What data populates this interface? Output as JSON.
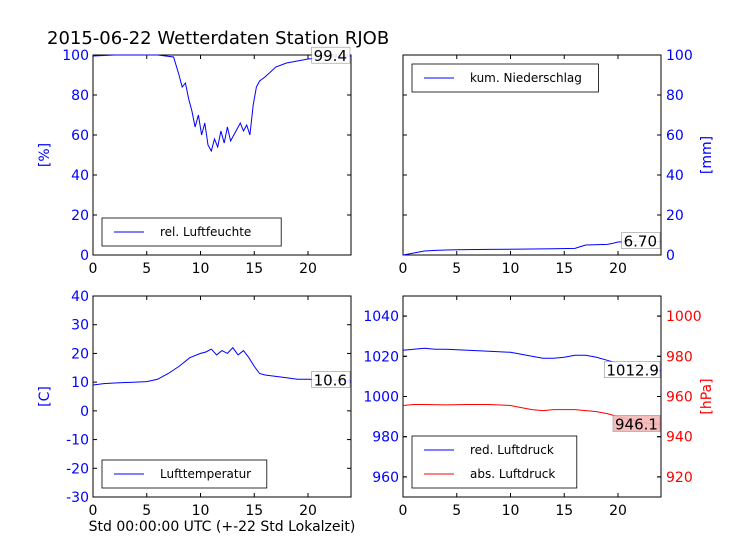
{
  "figure": {
    "title": "2015-06-22 Wetterdaten Station RJOB",
    "xlabel": "Std 00:00:00 UTC (+-22 Std Lokalzeit)"
  },
  "colors": {
    "blue": "#0000ff",
    "red": "#ff0000",
    "label_red_bg": "#f4b8b8"
  },
  "chart_data": [
    {
      "id": "humidity",
      "type": "line",
      "ylabel": "[%]",
      "xlim": [
        0,
        24
      ],
      "ylim": [
        0,
        100
      ],
      "xticks": [
        0,
        5,
        10,
        15,
        20
      ],
      "yticks": [
        0,
        20,
        40,
        60,
        80,
        100
      ],
      "yaxis_side": "left",
      "legend": {
        "placement": "lower-left"
      },
      "end_label": "99.4",
      "series": [
        {
          "name": "rel. Luftfeuchte",
          "color": "#0000ff",
          "x": [
            0,
            2,
            4,
            6,
            7.5,
            8,
            8.3,
            8.6,
            8.9,
            9.2,
            9.5,
            9.8,
            10.1,
            10.4,
            10.7,
            11,
            11.3,
            11.6,
            11.9,
            12.2,
            12.5,
            12.8,
            13.1,
            13.4,
            13.7,
            14,
            14.3,
            14.6,
            14.9,
            15.2,
            15.5,
            16,
            17,
            18,
            19,
            20,
            21,
            22,
            23,
            24
          ],
          "y": [
            99.5,
            100,
            100,
            100,
            99,
            90,
            84,
            86,
            78,
            72,
            64,
            70,
            60,
            66,
            55,
            52,
            58,
            54,
            62,
            56,
            64,
            57,
            60,
            63,
            66,
            62,
            65,
            60,
            75,
            84,
            87,
            89,
            94,
            96,
            97,
            98,
            98.5,
            99,
            99.3,
            99.4
          ]
        }
      ]
    },
    {
      "id": "precip",
      "type": "line",
      "ylabel": "[mm]",
      "xlim": [
        0,
        24
      ],
      "ylim": [
        0,
        100
      ],
      "xticks": [
        0,
        5,
        10,
        15,
        20
      ],
      "yticks": [
        0,
        20,
        40,
        60,
        80,
        100
      ],
      "yaxis_side": "right",
      "legend": {
        "placement": "upper-left"
      },
      "end_label": "6.70",
      "series": [
        {
          "name": "kum. Niederschlag",
          "color": "#0000ff",
          "x": [
            0,
            0.5,
            1,
            1.5,
            2,
            3,
            4,
            5,
            8,
            12,
            14,
            16,
            16.5,
            17,
            19,
            19.5,
            20,
            21,
            22,
            24
          ],
          "y": [
            0,
            0.5,
            1,
            1.5,
            2,
            2.3,
            2.5,
            2.6,
            2.8,
            3,
            3.1,
            3.3,
            4.2,
            5,
            5.3,
            5.8,
            6.5,
            6.6,
            6.7,
            6.7
          ]
        }
      ]
    },
    {
      "id": "temperature",
      "type": "line",
      "ylabel": "[C]",
      "xlim": [
        0,
        24
      ],
      "ylim": [
        -30,
        40
      ],
      "xticks": [
        0,
        5,
        10,
        15,
        20
      ],
      "yticks": [
        -30,
        -20,
        -10,
        0,
        10,
        20,
        30,
        40
      ],
      "yaxis_side": "left",
      "legend": {
        "placement": "lower-left"
      },
      "end_label": "10.6",
      "series": [
        {
          "name": "Lufttemperatur",
          "color": "#0000ff",
          "x": [
            0,
            1,
            2,
            4,
            5,
            6,
            7,
            8,
            9,
            10,
            10.5,
            11,
            11.5,
            12,
            12.5,
            13,
            13.5,
            14,
            14.5,
            15,
            15.5,
            16,
            17,
            18,
            19,
            20,
            21,
            22,
            23,
            24
          ],
          "y": [
            9,
            9.5,
            9.7,
            10,
            10.2,
            11,
            13,
            15.5,
            18.5,
            20,
            20.5,
            21.5,
            19.5,
            21,
            20,
            22,
            19.5,
            21,
            18.5,
            15.5,
            13,
            12.5,
            12,
            11.5,
            11,
            11,
            10.8,
            10.7,
            10.6,
            10.6
          ]
        }
      ]
    },
    {
      "id": "pressure",
      "type": "line",
      "ylabel": "[hPa]",
      "xlim": [
        0,
        24
      ],
      "ylim": [
        950,
        1050
      ],
      "ylim_right": [
        910,
        1010
      ],
      "xticks": [
        0,
        5,
        10,
        15,
        20
      ],
      "yticks": [
        960,
        980,
        1000,
        1020,
        1040
      ],
      "yticks_right": [
        920,
        940,
        960,
        980,
        1000
      ],
      "legend": {
        "placement": "lower-left"
      },
      "end_label": "1012.9",
      "end_label_right": "946.1",
      "series": [
        {
          "name": "red. Luftdruck",
          "color": "#0000ff",
          "axis": "left",
          "x": [
            0,
            1,
            2,
            3,
            4,
            6,
            8,
            10,
            11,
            12,
            12.5,
            13,
            14,
            15,
            15.5,
            16,
            17,
            18,
            19,
            20,
            21,
            22,
            23,
            24
          ],
          "y": [
            1023,
            1023.5,
            1024,
            1023.5,
            1023.5,
            1023,
            1022.5,
            1022,
            1021,
            1020,
            1019.5,
            1019,
            1019,
            1019.5,
            1020,
            1020.5,
            1020.5,
            1019.5,
            1018,
            1016.5,
            1015,
            1014,
            1013.5,
            1012.9
          ]
        },
        {
          "name": "abs. Luftdruck",
          "color": "#ff0000",
          "axis": "right",
          "x": [
            0,
            1,
            2,
            4,
            6,
            8,
            10,
            11,
            12,
            13,
            14,
            15,
            16,
            17,
            18,
            19,
            20,
            21,
            22,
            23,
            24
          ],
          "y": [
            955.5,
            956,
            956,
            955.8,
            956,
            956,
            955.5,
            954.5,
            953.5,
            953,
            953.5,
            953.5,
            953.5,
            953,
            952.5,
            951.5,
            950,
            948.5,
            947.5,
            946.5,
            946.1
          ]
        }
      ]
    }
  ]
}
